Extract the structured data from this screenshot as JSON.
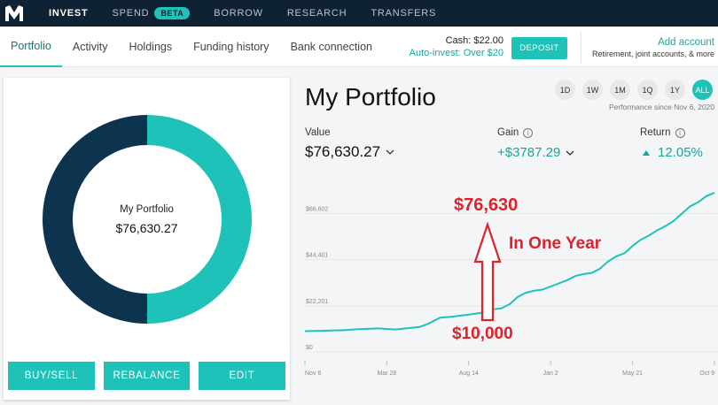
{
  "topnav": {
    "items": [
      {
        "label": "INVEST"
      },
      {
        "label": "SPEND",
        "badge": "BETA"
      },
      {
        "label": "BORROW"
      },
      {
        "label": "RESEARCH"
      },
      {
        "label": "TRANSFERS"
      }
    ]
  },
  "subnav": {
    "tabs": [
      "Portfolio",
      "Activity",
      "Holdings",
      "Funding history",
      "Bank connection"
    ],
    "cash": "Cash: $22.00",
    "auto_invest": "Auto-invest: Over $20",
    "deposit_label": "DEPOSIT",
    "add_account_title": "Add account",
    "add_account_sub": "Retirement, joint accounts, & more"
  },
  "card": {
    "donut_title": "My Portfolio",
    "donut_value": "$76,630.27",
    "donut_slices": [
      {
        "color": "#1fc2b8",
        "fraction": 0.5
      },
      {
        "color": "#0d344f",
        "fraction": 0.5
      }
    ],
    "buttons": {
      "buy_sell": "BUY/SELL",
      "rebalance": "REBALANCE",
      "edit": "EDIT"
    }
  },
  "portfolio": {
    "title": "My Portfolio",
    "ranges": [
      "1D",
      "1W",
      "1M",
      "1Q",
      "1Y",
      "ALL"
    ],
    "active_range": "ALL",
    "performance_since": "Performance since Nov 6, 2020",
    "value_label": "Value",
    "value": "$76,630.27",
    "gain_label": "Gain",
    "gain": "+$3787.29",
    "return_label": "Return",
    "return_value": "12.05%"
  },
  "chart_data": {
    "type": "line",
    "y_ticks": [
      "$66,602",
      "$44,401",
      "$22,201",
      "$0"
    ],
    "y_tick_values": [
      66602,
      44401,
      22201,
      0
    ],
    "x_ticks": [
      "Nov 6",
      "Mar 28",
      "Aug 14",
      "Jan 2",
      "May 21",
      "Oct 9"
    ],
    "ylim": [
      0,
      80000
    ],
    "grid": true,
    "series": [
      {
        "color": "#1fc2b8",
        "x": [
          0,
          0.05,
          0.1,
          0.13,
          0.18,
          0.22,
          0.26,
          0.28,
          0.3,
          0.33,
          0.36,
          0.38,
          0.4,
          0.42,
          0.44,
          0.46,
          0.48,
          0.5,
          0.52,
          0.54,
          0.56,
          0.58,
          0.6,
          0.62,
          0.64,
          0.66,
          0.68,
          0.7,
          0.72,
          0.74,
          0.76,
          0.78,
          0.8,
          0.82,
          0.84,
          0.86,
          0.88,
          0.9,
          0.92,
          0.94,
          0.96,
          0.98,
          1.0
        ],
        "values": [
          10000,
          10200,
          10500,
          11000,
          11300,
          10800,
          11600,
          12000,
          13500,
          16500,
          17000,
          17500,
          18000,
          18500,
          19000,
          20500,
          21000,
          23000,
          26500,
          28500,
          29500,
          30000,
          31500,
          33000,
          34500,
          36500,
          37500,
          38000,
          40000,
          43500,
          46000,
          47500,
          51000,
          54000,
          56000,
          58500,
          60500,
          63000,
          66500,
          70000,
          72000,
          75000,
          76630
        ]
      }
    ],
    "annotations": {
      "top": "$76,630",
      "middle": "In One Year",
      "bottom": "$10,000"
    }
  }
}
